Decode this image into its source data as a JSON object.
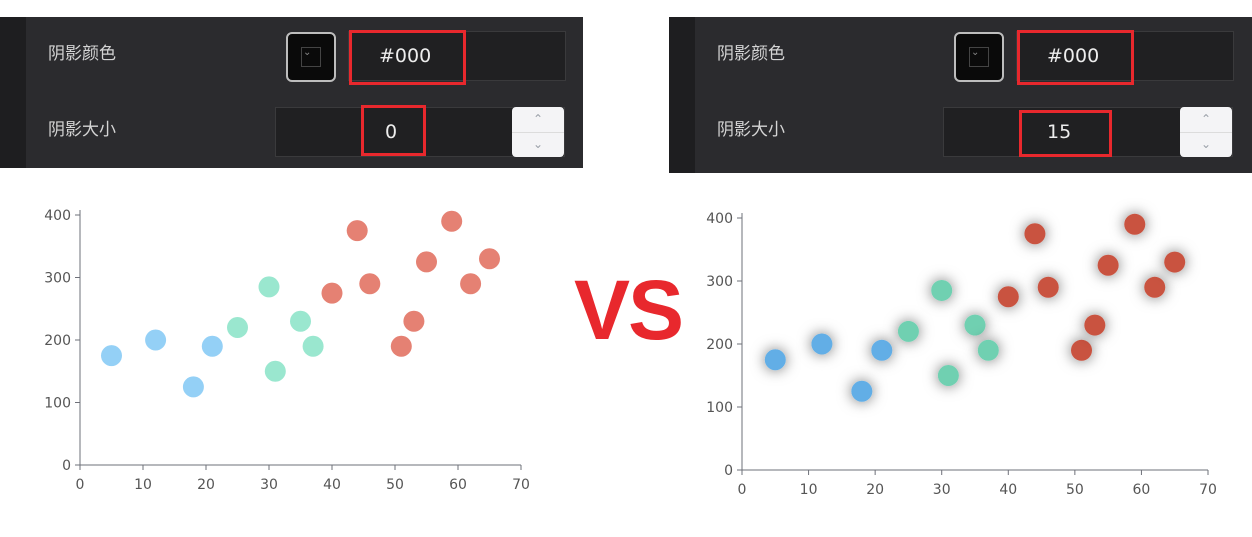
{
  "panels": [
    {
      "shadow_color_label": "阴影颜色",
      "shadow_color_value": "#000",
      "shadow_size_label": "阴影大小",
      "shadow_size_value": "0"
    },
    {
      "shadow_color_label": "阴影颜色",
      "shadow_color_value": "#000",
      "shadow_size_label": "阴影大小",
      "shadow_size_value": "15"
    }
  ],
  "vs_text": "VS",
  "colors": {
    "highlight": "#e8282d",
    "panel_bg": "#2b2b2e"
  },
  "chart_data": [
    {
      "type": "scatter",
      "xlim": [
        0,
        70
      ],
      "ylim": [
        0,
        400
      ],
      "xticks": [
        0,
        10,
        20,
        30,
        40,
        50,
        60,
        70
      ],
      "yticks": [
        0,
        100,
        200,
        300,
        400
      ],
      "shadow_blur": 0,
      "series": [
        {
          "color": "#8ecdf6",
          "points": [
            [
              5,
              175
            ],
            [
              12,
              200
            ],
            [
              18,
              125
            ],
            [
              21,
              190
            ]
          ]
        },
        {
          "color": "#95e6cc",
          "points": [
            [
              25,
              220
            ],
            [
              30,
              285
            ],
            [
              31,
              150
            ],
            [
              35,
              230
            ],
            [
              37,
              190
            ]
          ]
        },
        {
          "color": "#e47a6b",
          "points": [
            [
              40,
              275
            ],
            [
              44,
              375
            ],
            [
              46,
              290
            ],
            [
              51,
              190
            ],
            [
              53,
              230
            ],
            [
              55,
              325
            ],
            [
              59,
              390
            ],
            [
              62,
              290
            ],
            [
              65,
              330
            ]
          ]
        }
      ]
    },
    {
      "type": "scatter",
      "xlim": [
        0,
        70
      ],
      "ylim": [
        0,
        400
      ],
      "xticks": [
        0,
        10,
        20,
        30,
        40,
        50,
        60,
        70
      ],
      "yticks": [
        0,
        100,
        200,
        300,
        400
      ],
      "shadow_blur": 15,
      "series": [
        {
          "color": "#62aee6",
          "points": [
            [
              5,
              175
            ],
            [
              12,
              200
            ],
            [
              18,
              125
            ],
            [
              21,
              190
            ]
          ]
        },
        {
          "color": "#6fd0b1",
          "points": [
            [
              25,
              220
            ],
            [
              30,
              285
            ],
            [
              31,
              150
            ],
            [
              35,
              230
            ],
            [
              37,
              190
            ]
          ]
        },
        {
          "color": "#c9523f",
          "points": [
            [
              40,
              275
            ],
            [
              44,
              375
            ],
            [
              46,
              290
            ],
            [
              51,
              190
            ],
            [
              53,
              230
            ],
            [
              55,
              325
            ],
            [
              59,
              390
            ],
            [
              62,
              290
            ],
            [
              65,
              330
            ]
          ]
        }
      ]
    }
  ]
}
